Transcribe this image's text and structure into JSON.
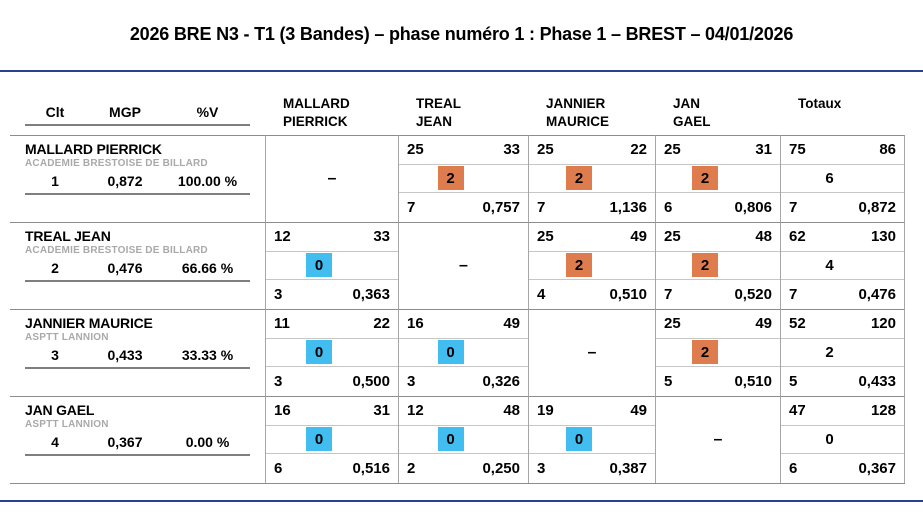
{
  "title": "2026 BRE N3 - T1 (3 Bandes) – phase numéro 1 : Phase 1 – BREST – 04/01/2026",
  "dash": "–",
  "colors": {
    "win_box": "#DE7C4D",
    "loss_box": "#41BDF0",
    "rule_line": "#2C3F8F",
    "club_text": "#A9A9A9"
  },
  "table": {
    "left_headers": {
      "rank": "Clt",
      "mgp": "MGP",
      "pct_v": "%V"
    },
    "opponent_headers": [
      {
        "line1": "MALLARD",
        "line2": "PIERRICK"
      },
      {
        "line1": "TREAL",
        "line2": "JEAN"
      },
      {
        "line1": "JANNIER",
        "line2": "MAURICE"
      },
      {
        "line1": "JAN",
        "line2": "GAEL"
      }
    ],
    "totals_header": "Totaux",
    "rows": [
      {
        "player": "MALLARD PIERRICK",
        "club": "ACADEMIE BRESTOISE DE BILLARD",
        "rank": "1",
        "mgp": "0,872",
        "pct_v": "100.00 %",
        "cells": [
          {
            "type": "self"
          },
          {
            "type": "win",
            "points": "25",
            "innings": "33",
            "match_points": "2",
            "best_run": "7",
            "average": "0,757"
          },
          {
            "type": "win",
            "points": "25",
            "innings": "22",
            "match_points": "2",
            "best_run": "7",
            "average": "1,136"
          },
          {
            "type": "win",
            "points": "25",
            "innings": "31",
            "match_points": "2",
            "best_run": "6",
            "average": "0,806"
          }
        ],
        "total": {
          "points": "75",
          "innings": "86",
          "match_points": "6",
          "best_run": "7",
          "average": "0,872"
        }
      },
      {
        "player": "TREAL JEAN",
        "club": "ACADEMIE BRESTOISE DE BILLARD",
        "rank": "2",
        "mgp": "0,476",
        "pct_v": "66.66 %",
        "cells": [
          {
            "type": "loss",
            "points": "12",
            "innings": "33",
            "match_points": "0",
            "best_run": "3",
            "average": "0,363"
          },
          {
            "type": "self"
          },
          {
            "type": "win",
            "points": "25",
            "innings": "49",
            "match_points": "2",
            "best_run": "4",
            "average": "0,510"
          },
          {
            "type": "win",
            "points": "25",
            "innings": "48",
            "match_points": "2",
            "best_run": "7",
            "average": "0,520"
          }
        ],
        "total": {
          "points": "62",
          "innings": "130",
          "match_points": "4",
          "best_run": "7",
          "average": "0,476"
        }
      },
      {
        "player": "JANNIER MAURICE",
        "club": "ASPTT LANNION",
        "rank": "3",
        "mgp": "0,433",
        "pct_v": "33.33 %",
        "cells": [
          {
            "type": "loss",
            "points": "11",
            "innings": "22",
            "match_points": "0",
            "best_run": "3",
            "average": "0,500"
          },
          {
            "type": "loss",
            "points": "16",
            "innings": "49",
            "match_points": "0",
            "best_run": "3",
            "average": "0,326"
          },
          {
            "type": "self"
          },
          {
            "type": "win",
            "points": "25",
            "innings": "49",
            "match_points": "2",
            "best_run": "5",
            "average": "0,510"
          }
        ],
        "total": {
          "points": "52",
          "innings": "120",
          "match_points": "2",
          "best_run": "5",
          "average": "0,433"
        }
      },
      {
        "player": "JAN GAEL",
        "club": "ASPTT LANNION",
        "rank": "4",
        "mgp": "0,367",
        "pct_v": "0.00 %",
        "cells": [
          {
            "type": "loss",
            "points": "16",
            "innings": "31",
            "match_points": "0",
            "best_run": "6",
            "average": "0,516"
          },
          {
            "type": "loss",
            "points": "12",
            "innings": "48",
            "match_points": "0",
            "best_run": "2",
            "average": "0,250"
          },
          {
            "type": "loss",
            "points": "19",
            "innings": "49",
            "match_points": "0",
            "best_run": "3",
            "average": "0,387"
          },
          {
            "type": "self"
          }
        ],
        "total": {
          "points": "47",
          "innings": "128",
          "match_points": "0",
          "best_run": "6",
          "average": "0,367"
        }
      }
    ]
  }
}
